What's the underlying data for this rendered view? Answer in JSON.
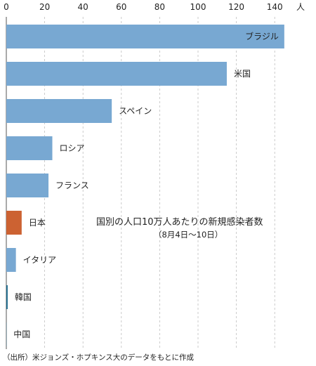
{
  "chart_data": {
    "type": "bar",
    "orientation": "horizontal",
    "unit_label": "人",
    "xlim": [
      0,
      150
    ],
    "ticks": [
      0,
      20,
      40,
      60,
      80,
      100,
      120,
      140
    ],
    "grid": "vertical-dashed",
    "annotation_title": "国別の人口10万人あたりの新規感染者数",
    "annotation_sub": "（8月4日〜10日）",
    "categories": [
      "ブラジル",
      "米国",
      "スペイン",
      "ロシア",
      "フランス",
      "日本",
      "イタリア",
      "韓国",
      "中国"
    ],
    "values": [
      145,
      115,
      55,
      24,
      22,
      8,
      5,
      0.7,
      0.1
    ],
    "colors": {
      "default": "#78a8d2",
      "highlight": "#cc6232",
      "highlight_category": "日本",
      "korea_edge": "#1f6c8e"
    }
  },
  "source_note": "（出所）米ジョンズ・ホプキンス大のデータをもとに作成"
}
